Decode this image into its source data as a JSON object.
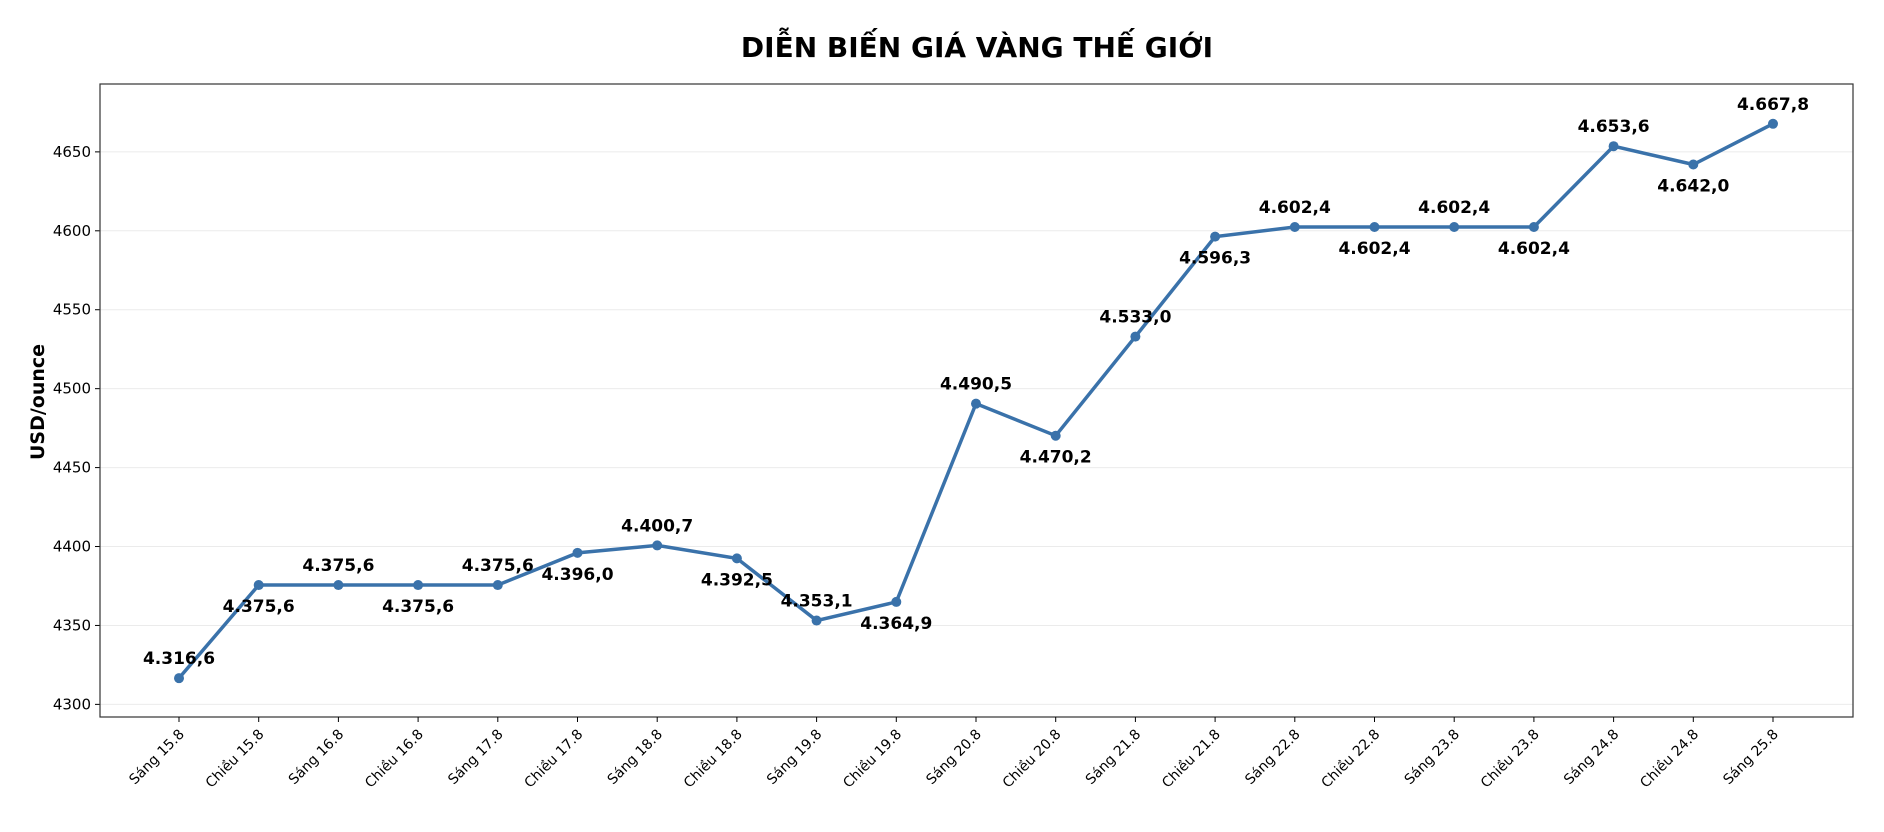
{
  "chart_data": {
    "type": "line",
    "title": "DIỄN BIẾN GIÁ VÀNG THẾ GIỚI",
    "y_label": "USD/ounce",
    "categories": [
      "Sáng 15.8",
      "Chiều 15.8",
      "Sáng 16.8",
      "Chiều 16.8",
      "Sáng 17.8",
      "Chiều 17.8",
      "Sáng 18.8",
      "Chiều 18.8",
      "Sáng 19.8",
      "Chiều 19.8",
      "Sáng 20.8",
      "Chiều 20.8",
      "Sáng 21.8",
      "Chiều 21.8",
      "Sáng 22.8",
      "Chiều 22.8",
      "Sáng 23.8",
      "Chiều 23.8",
      "Sáng 24.8",
      "Chiều 24.8",
      "Sáng 25.8"
    ],
    "series": [
      {
        "name": "USD/ounce",
        "color": "#3a72aa",
        "values": [
          4316.6,
          4375.6,
          4375.6,
          4375.6,
          4375.6,
          4396.0,
          4400.7,
          4392.5,
          4353.1,
          4364.9,
          4490.5,
          4470.2,
          4533.0,
          4596.3,
          4602.4,
          4602.4,
          4602.4,
          4602.4,
          4653.6,
          4642.0,
          4667.8
        ],
        "value_labels": [
          "4.316,6",
          "4.375,6",
          "4.375,6",
          "4.375,6",
          "4.375,6",
          "4.396,0",
          "4.400,7",
          "4.392,5",
          "4.353,1",
          "4.364,9",
          "4.490,5",
          "4.470,2",
          "4.533,0",
          "4.596,3",
          "4.602,4",
          "4.602,4",
          "4.602,4",
          "4.602,4",
          "4.653,6",
          "4.642,0",
          "4.667,8"
        ]
      }
    ],
    "ylim": [
      4292,
      4693
    ],
    "yticks": [
      4300,
      4350,
      4400,
      4450,
      4500,
      4550,
      4600,
      4650
    ],
    "grid": true
  }
}
